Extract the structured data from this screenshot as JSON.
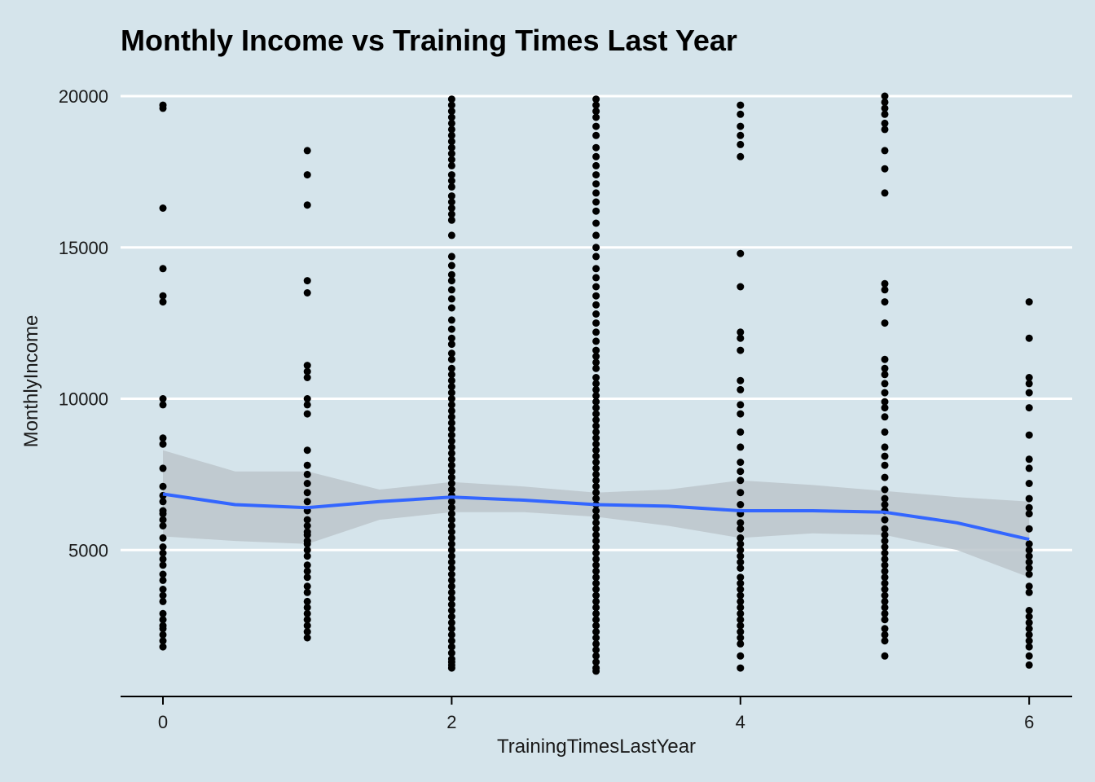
{
  "colors": {
    "background": "#d5e4eb",
    "point": "#000000",
    "smooth_line": "#3366ff",
    "ribbon": "#bcc5cb",
    "grid": "#ffffff"
  },
  "chart_data": {
    "type": "scatter",
    "title": "Monthly Income vs Training Times Last Year",
    "xlabel": "TrainingTimesLastYear",
    "ylabel": "MonthlyIncome",
    "xlim": [
      -0.3,
      6.3
    ],
    "ylim": [
      0,
      20000
    ],
    "x_ticks": [
      0,
      2,
      4,
      6
    ],
    "y_ticks": [
      5000,
      10000,
      15000,
      20000
    ],
    "grid": "horizontal major only",
    "groups": [
      {
        "x": 0,
        "y": [
          19700,
          19600,
          16300,
          14300,
          13400,
          13200,
          10000,
          9800,
          8700,
          8500,
          7700,
          7100,
          6800,
          6600,
          6300,
          6200,
          6000,
          5800,
          5400,
          5100,
          4900,
          4700,
          4500,
          4200,
          4000,
          3700,
          3500,
          3300,
          2900,
          2700,
          2500,
          2400,
          2200,
          2000,
          1800
        ]
      },
      {
        "x": 1,
        "y": [
          18200,
          17400,
          16400,
          13900,
          13500,
          11100,
          10900,
          10700,
          10000,
          9800,
          9500,
          8300,
          7800,
          7500,
          7200,
          6900,
          6600,
          6300,
          6000,
          5800,
          5600,
          5500,
          5300,
          5200,
          5000,
          4800,
          4500,
          4300,
          4100,
          3800,
          3600,
          3300,
          3100,
          2900,
          2700,
          2500,
          2300,
          2100
        ]
      },
      {
        "x": 2,
        "y": [
          19900,
          19700,
          19500,
          19300,
          19100,
          18900,
          18700,
          18500,
          18300,
          18100,
          17900,
          17700,
          17400,
          17200,
          17000,
          16700,
          16500,
          16300,
          16100,
          15900,
          15400,
          14700,
          14400,
          14100,
          13900,
          13600,
          13300,
          13000,
          12600,
          12300,
          12000,
          11800,
          11500,
          11300,
          11000,
          10800,
          10600,
          10400,
          10200,
          10000,
          9800,
          9600,
          9400,
          9200,
          9000,
          8800,
          8600,
          8400,
          8200,
          8000,
          7800,
          7600,
          7400,
          7200,
          7000,
          6800,
          6600,
          6400,
          6200,
          6000,
          5800,
          5600,
          5400,
          5200,
          5000,
          4800,
          4600,
          4400,
          4200,
          4000,
          3800,
          3600,
          3400,
          3200,
          3000,
          2800,
          2600,
          2400,
          2200,
          2000,
          1800,
          1600,
          1400,
          1300,
          1200,
          1100
        ]
      },
      {
        "x": 3,
        "y": [
          19900,
          19700,
          19500,
          19300,
          19000,
          18700,
          18300,
          18000,
          17700,
          17400,
          17100,
          16800,
          16500,
          16200,
          15800,
          15400,
          15000,
          14700,
          14300,
          14000,
          13700,
          13400,
          13100,
          12800,
          12500,
          12200,
          11900,
          11600,
          11400,
          11200,
          11000,
          10700,
          10500,
          10300,
          10100,
          9900,
          9700,
          9500,
          9300,
          9100,
          8900,
          8700,
          8500,
          8300,
          8100,
          7900,
          7700,
          7500,
          7300,
          7100,
          6900,
          6700,
          6500,
          6300,
          6100,
          5900,
          5700,
          5500,
          5300,
          5100,
          4900,
          4700,
          4500,
          4300,
          4100,
          3900,
          3700,
          3500,
          3300,
          3100,
          2900,
          2700,
          2500,
          2300,
          2100,
          1900,
          1700,
          1500,
          1300,
          1100,
          1000
        ]
      },
      {
        "x": 4,
        "y": [
          19700,
          19400,
          19000,
          18700,
          18400,
          18000,
          14800,
          13700,
          12200,
          12000,
          11600,
          10600,
          10300,
          9800,
          9500,
          8900,
          8400,
          7900,
          7600,
          7300,
          6900,
          6500,
          6200,
          5900,
          5700,
          5400,
          5200,
          5000,
          4800,
          4600,
          4400,
          4100,
          3900,
          3700,
          3500,
          3300,
          3100,
          2900,
          2700,
          2500,
          2300,
          2100,
          1900,
          1500,
          1100
        ]
      },
      {
        "x": 5,
        "y": [
          20000,
          19800,
          19600,
          19400,
          19100,
          18900,
          18200,
          17600,
          16800,
          13800,
          13600,
          13200,
          12500,
          11300,
          11000,
          10800,
          10500,
          10200,
          9900,
          9700,
          9400,
          8900,
          8400,
          8100,
          7800,
          7400,
          7000,
          6700,
          6500,
          6300,
          6000,
          5700,
          5500,
          5300,
          5100,
          4900,
          4700,
          4500,
          4300,
          4100,
          3900,
          3700,
          3500,
          3300,
          3100,
          2900,
          2700,
          2400,
          2200,
          2000,
          1500
        ]
      },
      {
        "x": 6,
        "y": [
          13200,
          12000,
          10700,
          10500,
          10200,
          9700,
          8800,
          8000,
          7700,
          7200,
          6700,
          6400,
          6200,
          5700,
          5200,
          5000,
          4800,
          4600,
          4400,
          4200,
          3800,
          3600,
          3000,
          2800,
          2600,
          2400,
          2200,
          2000,
          1800,
          1500,
          1200
        ]
      }
    ],
    "smooth": {
      "x": [
        0,
        0.5,
        1,
        1.5,
        2,
        2.5,
        3,
        3.5,
        4,
        4.5,
        5,
        5.5,
        6
      ],
      "y": [
        6850,
        6500,
        6400,
        6600,
        6750,
        6650,
        6500,
        6450,
        6300,
        6300,
        6250,
        5900,
        5350
      ],
      "lower": [
        5450,
        5300,
        5200,
        6000,
        6250,
        6250,
        6100,
        5800,
        5400,
        5550,
        5500,
        5000,
        4100
      ],
      "upper": [
        8300,
        7600,
        7600,
        7000,
        7250,
        7100,
        6900,
        7000,
        7300,
        7150,
        6950,
        6750,
        6600
      ]
    }
  }
}
